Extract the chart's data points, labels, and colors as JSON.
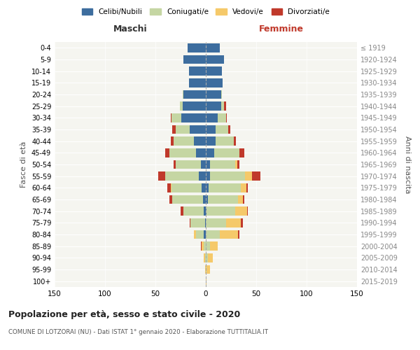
{
  "age_groups": [
    "0-4",
    "5-9",
    "10-14",
    "15-19",
    "20-24",
    "25-29",
    "30-34",
    "35-39",
    "40-44",
    "45-49",
    "50-54",
    "55-59",
    "60-64",
    "65-69",
    "70-74",
    "75-79",
    "80-84",
    "85-89",
    "90-94",
    "95-99",
    "100+"
  ],
  "birth_years": [
    "2015-2019",
    "2010-2014",
    "2005-2009",
    "2000-2004",
    "1995-1999",
    "1990-1994",
    "1985-1989",
    "1980-1984",
    "1975-1979",
    "1970-1974",
    "1965-1969",
    "1960-1964",
    "1955-1959",
    "1950-1954",
    "1945-1949",
    "1940-1944",
    "1935-1939",
    "1930-1934",
    "1925-1929",
    "1920-1924",
    "≤ 1919"
  ],
  "colors": {
    "celibi": "#3d6d9e",
    "coniugati": "#c5d6a3",
    "vedovi": "#f5c96a",
    "divorziati": "#c0392b"
  },
  "maschi": {
    "celibi": [
      18,
      22,
      17,
      17,
      22,
      23,
      24,
      16,
      12,
      10,
      5,
      7,
      4,
      3,
      2,
      1,
      2,
      0,
      0,
      0,
      0
    ],
    "coniugati": [
      0,
      0,
      0,
      0,
      1,
      3,
      10,
      14,
      20,
      26,
      25,
      33,
      30,
      30,
      20,
      14,
      8,
      2,
      1,
      0,
      0
    ],
    "vedovi": [
      0,
      0,
      0,
      0,
      0,
      0,
      0,
      0,
      0,
      0,
      0,
      0,
      1,
      0,
      0,
      0,
      2,
      2,
      1,
      1,
      0
    ],
    "divorziati": [
      0,
      0,
      0,
      0,
      0,
      0,
      1,
      3,
      3,
      4,
      2,
      7,
      3,
      3,
      3,
      1,
      0,
      1,
      0,
      0,
      0
    ]
  },
  "femmine": {
    "celibi": [
      14,
      18,
      16,
      17,
      15,
      15,
      12,
      10,
      10,
      8,
      4,
      4,
      3,
      2,
      1,
      0,
      0,
      0,
      0,
      0,
      0
    ],
    "coniugati": [
      0,
      0,
      0,
      0,
      1,
      3,
      8,
      12,
      18,
      25,
      25,
      35,
      32,
      30,
      28,
      20,
      14,
      4,
      2,
      1,
      0
    ],
    "vedovi": [
      0,
      0,
      0,
      0,
      0,
      0,
      0,
      0,
      0,
      0,
      2,
      7,
      5,
      5,
      12,
      15,
      18,
      8,
      5,
      3,
      1
    ],
    "divorziati": [
      0,
      0,
      0,
      0,
      0,
      2,
      1,
      2,
      2,
      5,
      2,
      8,
      2,
      1,
      1,
      2,
      1,
      0,
      0,
      0,
      0
    ]
  },
  "xlim": 150,
  "title": "Popolazione per età, sesso e stato civile - 2020",
  "subtitle": "COMUNE DI LOTZORAI (NU) - Dati ISTAT 1° gennaio 2020 - Elaborazione TUTTITALIA.IT",
  "xlabel_left": "Maschi",
  "xlabel_right": "Femmine",
  "ylabel_left": "Fasce di età",
  "ylabel_right": "Anni di nascita",
  "legend_labels": [
    "Celibi/Nubili",
    "Coniugati/e",
    "Vedovi/e",
    "Divorziati/e"
  ],
  "bg_color": "#f5f5f0"
}
